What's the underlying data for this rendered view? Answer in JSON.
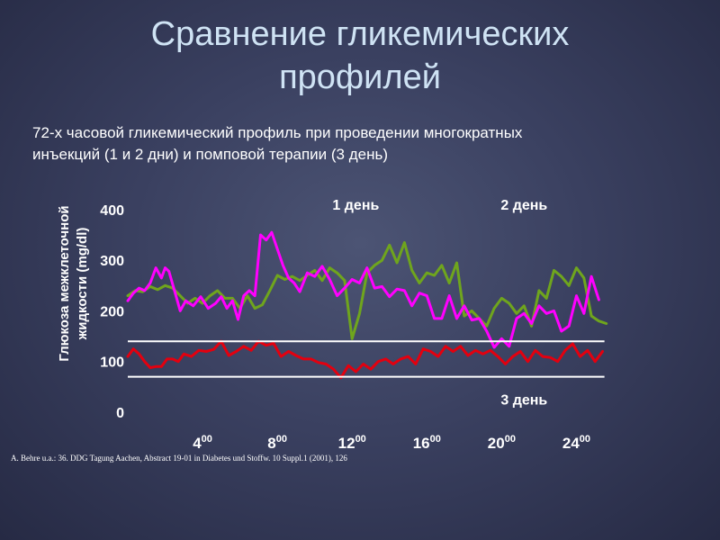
{
  "title_line1": "Сравнение гликемических",
  "title_line2": "профилей",
  "subtitle_line1": "72-х часовой гликемический профиль при проведении многократных",
  "subtitle_line2": "инъекций (1 и 2 дни) и помповой терапии (3 день)",
  "citation": "A. Behre  u.a.: 36. DDG Tagung Aachen, Abstract 19-01 in Diabetes und Stoffw. 10 Suppl.1 (2001),  126",
  "chart_data": {
    "type": "line",
    "ylabel_line1": "Глюкоза межклеточной",
    "ylabel_line2": "жидкости (mg/dl)",
    "ylim": [
      0,
      430
    ],
    "yticks": [
      "0",
      "100",
      "200",
      "300",
      "400"
    ],
    "ytick_values": [
      0,
      100,
      200,
      300,
      400
    ],
    "xlim": [
      0,
      26
    ],
    "xticks": [
      {
        "value": 4,
        "base": "4",
        "sup": "00"
      },
      {
        "value": 8,
        "base": "8",
        "sup": "00"
      },
      {
        "value": 12,
        "base": "12",
        "sup": "00"
      },
      {
        "value": 16,
        "base": "16",
        "sup": "00"
      },
      {
        "value": 20,
        "base": "20",
        "sup": "00"
      },
      {
        "value": 24,
        "base": "24",
        "sup": "00"
      }
    ],
    "target_range": [
      70,
      140
    ],
    "day_labels": [
      {
        "text": "1 день",
        "x": 12.2,
        "y": 400
      },
      {
        "text": "2 день",
        "x": 21.2,
        "y": 400
      },
      {
        "text": "3 день",
        "x": 21.2,
        "y": 15
      }
    ],
    "colors": {
      "day1": "#ff00ff",
      "day2": "#6fa51d",
      "day3": "#e3000f",
      "range_lines": "#ffffff"
    },
    "series": [
      {
        "name": "1 день",
        "color": "#ff00ff",
        "x": [
          0.0,
          0.3,
          0.6,
          0.9,
          1.2,
          1.5,
          1.8,
          2.0,
          2.2,
          2.5,
          2.8,
          3.1,
          3.5,
          3.9,
          4.3,
          4.7,
          5.0,
          5.3,
          5.6,
          5.9,
          6.2,
          6.5,
          6.8,
          7.1,
          7.4,
          7.7,
          8.0,
          8.3,
          8.6,
          8.9,
          9.2,
          9.6,
          10.0,
          10.4,
          10.8,
          11.2,
          11.6,
          12.0,
          12.4,
          12.8,
          13.2,
          13.6,
          14.0,
          14.4,
          14.8,
          15.2,
          15.6,
          16.0,
          16.4,
          16.8,
          17.2,
          17.6,
          18.0,
          18.4,
          18.8,
          19.2,
          19.6,
          20.0,
          20.4,
          20.8,
          21.2,
          21.6,
          22.0,
          22.4,
          22.8,
          23.2,
          23.6,
          24.0,
          24.4,
          24.8,
          25.2
        ],
        "values": [
          220,
          235,
          245,
          240,
          255,
          285,
          265,
          285,
          278,
          240,
          200,
          220,
          210,
          228,
          205,
          215,
          228,
          205,
          220,
          183,
          230,
          240,
          230,
          350,
          340,
          355,
          322,
          290,
          265,
          255,
          238,
          275,
          268,
          288,
          262,
          230,
          245,
          262,
          255,
          285,
          245,
          248,
          228,
          243,
          240,
          210,
          235,
          230,
          185,
          185,
          230,
          185,
          210,
          182,
          185,
          160,
          128,
          145,
          130,
          185,
          195,
          175,
          210,
          195,
          200,
          160,
          170,
          230,
          195,
          268,
          222
        ]
      },
      {
        "name": "2 день",
        "color": "#6fa51d",
        "x": [
          0.0,
          0.4,
          0.8,
          1.2,
          1.6,
          2.0,
          2.4,
          2.8,
          3.2,
          3.6,
          4.0,
          4.4,
          4.8,
          5.2,
          5.6,
          6.0,
          6.4,
          6.8,
          7.2,
          7.6,
          8.0,
          8.4,
          8.8,
          9.2,
          9.6,
          10.0,
          10.4,
          10.8,
          11.2,
          11.6,
          12.0,
          12.4,
          12.8,
          13.2,
          13.6,
          14.0,
          14.4,
          14.8,
          15.2,
          15.6,
          16.0,
          16.4,
          16.8,
          17.2,
          17.6,
          18.0,
          18.4,
          18.8,
          19.2,
          19.6,
          20.0,
          20.4,
          20.8,
          21.2,
          21.6,
          22.0,
          22.4,
          22.8,
          23.2,
          23.6,
          24.0,
          24.4,
          24.8,
          25.2,
          25.6
        ],
        "values": [
          230,
          240,
          238,
          248,
          242,
          250,
          245,
          230,
          215,
          225,
          215,
          230,
          240,
          225,
          225,
          205,
          230,
          205,
          212,
          240,
          270,
          262,
          268,
          260,
          270,
          280,
          260,
          285,
          275,
          260,
          145,
          195,
          275,
          290,
          300,
          330,
          295,
          335,
          280,
          255,
          275,
          270,
          290,
          255,
          295,
          190,
          200,
          185,
          170,
          205,
          225,
          215,
          195,
          210,
          170,
          240,
          225,
          280,
          268,
          250,
          285,
          265,
          190,
          180,
          175
        ]
      },
      {
        "name": "3 день",
        "color": "#e3000f",
        "x": [
          0.0,
          0.3,
          0.6,
          0.9,
          1.2,
          1.5,
          1.8,
          2.1,
          2.4,
          2.7,
          3.0,
          3.4,
          3.8,
          4.2,
          4.6,
          5.0,
          5.4,
          5.8,
          6.2,
          6.6,
          7.0,
          7.4,
          7.8,
          8.2,
          8.6,
          9.0,
          9.4,
          9.8,
          10.2,
          10.6,
          11.0,
          11.4,
          11.8,
          12.2,
          12.6,
          13.0,
          13.4,
          13.8,
          14.2,
          14.6,
          15.0,
          15.4,
          15.8,
          16.2,
          16.6,
          17.0,
          17.4,
          17.8,
          18.2,
          18.6,
          19.0,
          19.4,
          19.8,
          20.2,
          20.6,
          21.0,
          21.4,
          21.8,
          22.2,
          22.6,
          23.0,
          23.4,
          23.8,
          24.2,
          24.6,
          25.0,
          25.4
        ],
        "values": [
          110,
          125,
          115,
          100,
          88,
          90,
          90,
          105,
          105,
          100,
          115,
          110,
          122,
          120,
          124,
          140,
          112,
          120,
          130,
          122,
          140,
          132,
          136,
          110,
          120,
          112,
          105,
          105,
          98,
          95,
          85,
          68,
          92,
          80,
          95,
          85,
          100,
          105,
          95,
          105,
          110,
          95,
          125,
          120,
          110,
          130,
          120,
          130,
          112,
          122,
          115,
          122,
          110,
          95,
          110,
          120,
          100,
          122,
          110,
          108,
          100,
          122,
          135,
          110,
          122,
          100,
          120
        ]
      }
    ]
  }
}
